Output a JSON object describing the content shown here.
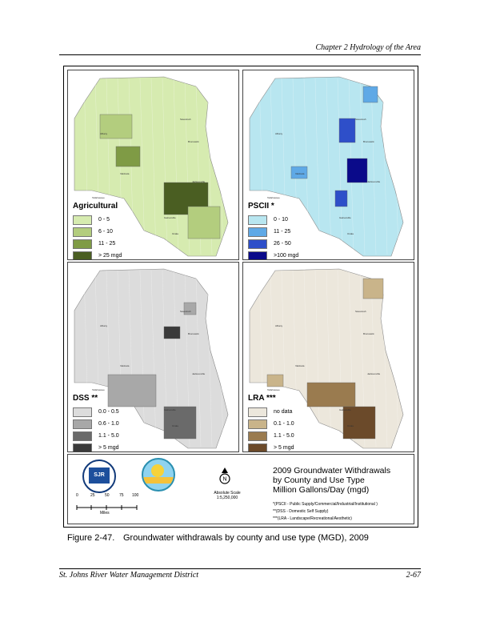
{
  "header": {
    "chapter": "Chapter 2 Hydrology of the Area"
  },
  "panels": [
    {
      "title": "Agricultural",
      "legend": [
        {
          "label": "0 - 5",
          "color": "#d6ebb0"
        },
        {
          "label": "6 - 10",
          "color": "#b3cd7e"
        },
        {
          "label": "11 - 25",
          "color": "#7f9b45"
        },
        {
          "label": "> 25 mgd",
          "color": "#4a5e22"
        }
      ],
      "base": "#d6ebb0"
    },
    {
      "title": "PSCII *",
      "legend": [
        {
          "label": "0 - 10",
          "color": "#b8e6f0"
        },
        {
          "label": "11 - 25",
          "color": "#5fa9e6"
        },
        {
          "label": "26 - 50",
          "color": "#2e4fc9"
        },
        {
          "label": ">100 mgd",
          "color": "#0a0a8a"
        }
      ],
      "base": "#b8e6f0"
    },
    {
      "title": "DSS **",
      "legend": [
        {
          "label": "0.0 - 0.5",
          "color": "#dcdcdc"
        },
        {
          "label": "0.6 - 1.0",
          "color": "#a8a8a8"
        },
        {
          "label": "1.1 - 5.0",
          "color": "#6a6a6a"
        },
        {
          "label": "> 5 mgd",
          "color": "#3a3a3a"
        }
      ],
      "base": "#dcdcdc"
    },
    {
      "title": "LRA ***",
      "legend": [
        {
          "label": "no data",
          "color": "#ece7dc"
        },
        {
          "label": "0.1 - 1.0",
          "color": "#c9b48a"
        },
        {
          "label": "1.1 - 5.0",
          "color": "#9a7b4f"
        },
        {
          "label": "> 5 mgd",
          "color": "#6b4a2a"
        }
      ],
      "base": "#ece7dc"
    }
  ],
  "cities": [
    "Savannah",
    "Albany",
    "Valdosta",
    "Brunswick",
    "Tallahassee",
    "Jacksonville",
    "Gainesville",
    "Ocala"
  ],
  "bottom": {
    "logo_text": "SJR",
    "scale_label": "Absolute Scale",
    "scale_value": "1:5,250,000",
    "scale_ticks": [
      "0",
      "25",
      "50",
      "75",
      "100"
    ],
    "miles_label": "Miles",
    "title_lines": [
      "2009 Groundwater Withdrawals",
      "by County and Use Type",
      "Million Gallons/Day (mgd)"
    ],
    "notes": [
      "*(PSCII - Public Supply/Commercial/Industrial/Institutional )",
      "**(DSS - Domestic Self Supply)",
      "***(LRA - Landscape/Recreational/Aesthetic)"
    ]
  },
  "caption": {
    "number": "Figure 2-47.",
    "text": "Groundwater withdrawals by county and use type (MGD), 2009"
  },
  "footer": {
    "left": "St. Johns River Water Management District",
    "right": "2-67"
  }
}
